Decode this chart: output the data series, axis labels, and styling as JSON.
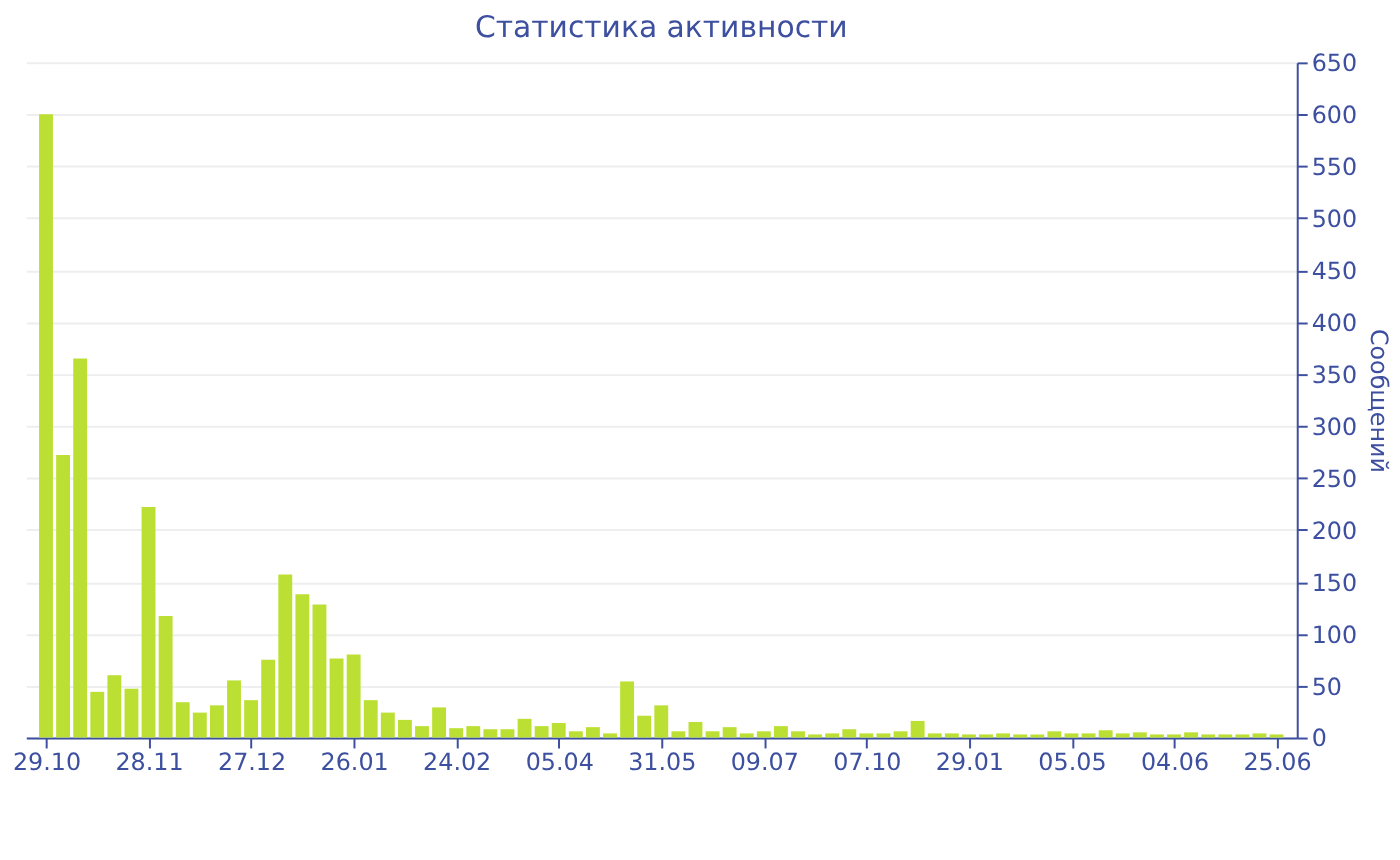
{
  "chart_data": {
    "type": "bar",
    "title": "Статистика активности",
    "ylabel": "Сообщений",
    "categories": [
      "29.10",
      null,
      null,
      null,
      null,
      null,
      "28.11",
      null,
      null,
      null,
      null,
      null,
      "27.12",
      null,
      null,
      null,
      null,
      null,
      "26.01",
      null,
      null,
      null,
      null,
      null,
      "24.02",
      null,
      null,
      null,
      null,
      null,
      "05.04",
      null,
      null,
      null,
      null,
      null,
      "31.05",
      null,
      null,
      null,
      null,
      null,
      "09.07",
      null,
      null,
      null,
      null,
      null,
      "07.10",
      null,
      null,
      null,
      null,
      null,
      "29.01",
      null,
      null,
      null,
      null,
      null,
      "05.05",
      null,
      null,
      null,
      null,
      null,
      "04.06",
      null,
      null,
      null,
      null,
      null,
      "25.06"
    ],
    "values": [
      600,
      272,
      365,
      44,
      60,
      47,
      222,
      117,
      34,
      24,
      31,
      55,
      36,
      75,
      157,
      138,
      128,
      76,
      80,
      36,
      24,
      17,
      11,
      29,
      9,
      11,
      8,
      8,
      18,
      11,
      14,
      6,
      10,
      4,
      54,
      21,
      31,
      6,
      15,
      6,
      10,
      4,
      6,
      11,
      6,
      3,
      4,
      8,
      4,
      4,
      6,
      16,
      4,
      4,
      3,
      3,
      4,
      3,
      3,
      6,
      4,
      4,
      7,
      4,
      5,
      3,
      3,
      5,
      3,
      3,
      3,
      4,
      3
    ],
    "color": "#bbe033",
    "ylim": [
      0,
      650
    ],
    "yticks": [
      0,
      50,
      100,
      150,
      200,
      250,
      300,
      350,
      400,
      450,
      500,
      550,
      600,
      650
    ],
    "grid": "y"
  }
}
